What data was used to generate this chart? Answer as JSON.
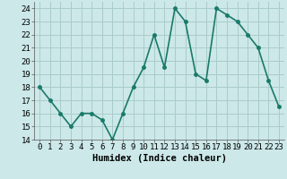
{
  "x": [
    0,
    1,
    2,
    3,
    4,
    5,
    6,
    7,
    8,
    9,
    10,
    11,
    12,
    13,
    14,
    15,
    16,
    17,
    18,
    19,
    20,
    21,
    22,
    23
  ],
  "y": [
    18,
    17,
    16,
    15,
    16,
    16,
    15.5,
    14,
    16,
    18,
    19.5,
    22,
    19.5,
    24,
    23,
    19,
    18.5,
    24,
    23.5,
    23,
    22,
    21,
    18.5,
    16.5
  ],
  "line_color": "#1a7a6a",
  "marker": "o",
  "marker_size": 2.5,
  "bg_color": "#cce8e8",
  "grid_color": "#aacccc",
  "xlabel": "Humidex (Indice chaleur)",
  "xlim": [
    -0.5,
    23.5
  ],
  "ylim": [
    14,
    24.5
  ],
  "yticks": [
    14,
    15,
    16,
    17,
    18,
    19,
    20,
    21,
    22,
    23,
    24
  ],
  "xticks": [
    0,
    1,
    2,
    3,
    4,
    5,
    6,
    7,
    8,
    9,
    10,
    11,
    12,
    13,
    14,
    15,
    16,
    17,
    18,
    19,
    20,
    21,
    22,
    23
  ],
  "tick_fontsize": 6.5,
  "xlabel_fontsize": 7.5,
  "linewidth": 1.2
}
